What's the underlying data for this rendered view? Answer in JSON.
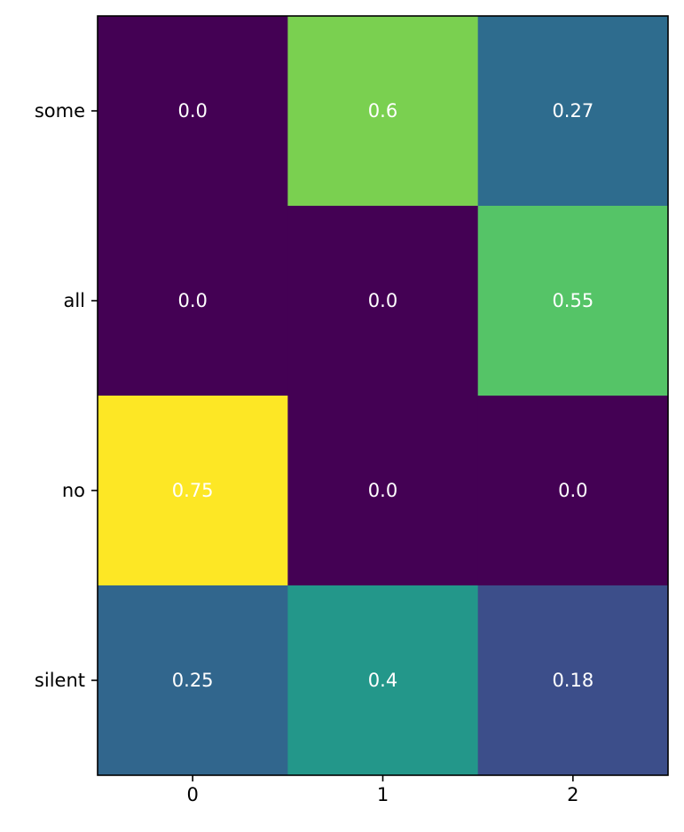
{
  "chart_data": {
    "type": "heatmap",
    "title": "",
    "xlabel": "",
    "ylabel": "",
    "x_categories": [
      "0",
      "1",
      "2"
    ],
    "y_categories": [
      "some",
      "all",
      "no",
      "silent"
    ],
    "values": [
      [
        0.0,
        0.6,
        0.27
      ],
      [
        0.0,
        0.0,
        0.55
      ],
      [
        0.75,
        0.0,
        0.0
      ],
      [
        0.25,
        0.4,
        0.18
      ]
    ],
    "value_labels": [
      [
        "0.0",
        "0.6",
        "0.27"
      ],
      [
        "0.0",
        "0.0",
        "0.55"
      ],
      [
        "0.75",
        "0.0",
        "0.0"
      ],
      [
        "0.25",
        "0.4",
        "0.18"
      ]
    ],
    "colormap": "viridis",
    "value_range": [
      0.0,
      0.75
    ],
    "annotation_color": "#ffffff",
    "grid": false,
    "colorbar": false
  }
}
